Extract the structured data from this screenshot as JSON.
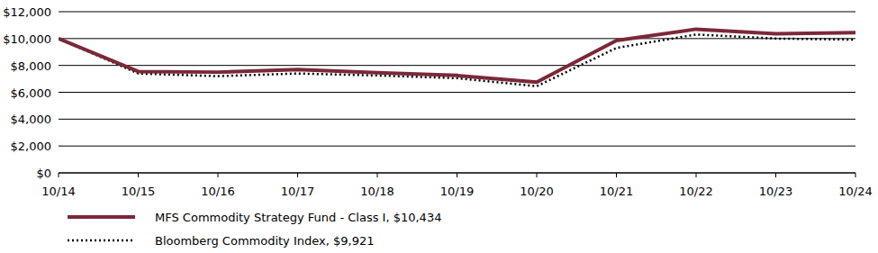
{
  "chart_data": {
    "type": "line",
    "categories": [
      "10/14",
      "10/15",
      "10/16",
      "10/17",
      "10/18",
      "10/19",
      "10/20",
      "10/21",
      "10/22",
      "10/23",
      "10/24"
    ],
    "series": [
      {
        "name": "MFS Commodity Strategy Fund - Class I, $10,434",
        "color": "#7b2838",
        "line_style": "solid",
        "values": [
          10000,
          7550,
          7500,
          7700,
          7450,
          7250,
          6750,
          9850,
          10700,
          10350,
          10434
        ]
      },
      {
        "name": "Bloomberg Commodity Index, $9,921",
        "color": "#000000",
        "line_style": "dotted",
        "values": [
          10000,
          7400,
          7200,
          7400,
          7250,
          7050,
          6450,
          9300,
          10300,
          10000,
          9921
        ]
      }
    ],
    "ylim": [
      0,
      12000
    ],
    "yticks": [
      {
        "value": 0,
        "label": "$0"
      },
      {
        "value": 2000,
        "label": "$2,000"
      },
      {
        "value": 4000,
        "label": "$4,000"
      },
      {
        "value": 6000,
        "label": "$6,000"
      },
      {
        "value": 8000,
        "label": "$8,000"
      },
      {
        "value": 10000,
        "label": "$10,000"
      },
      {
        "value": 12000,
        "label": "$12,000"
      }
    ],
    "grid": true,
    "legend": "bottom"
  }
}
